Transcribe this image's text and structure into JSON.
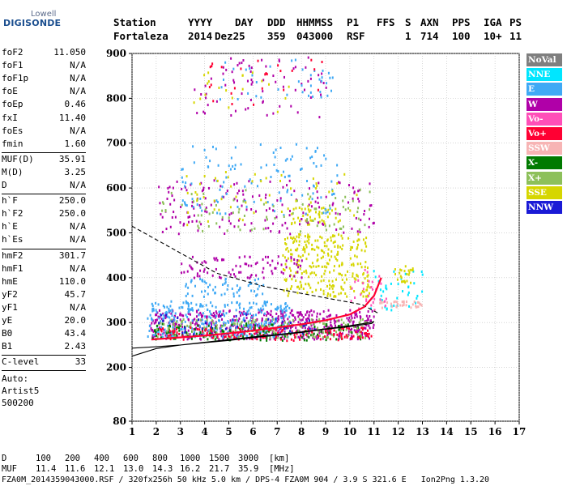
{
  "logo": {
    "top": "Lowell",
    "main": "DIGISONDE"
  },
  "header": {
    "columns": [
      "Station",
      "YYYY",
      "DAY",
      "DDD",
      "HHMMSS",
      "P1",
      "FFS",
      "S",
      "AXN",
      "PPS",
      "IGA",
      "PS"
    ],
    "values": [
      "Fortaleza",
      "2014",
      "Dez25",
      "359",
      "043000",
      "RSF",
      "1",
      "714",
      "100",
      "10+",
      "11"
    ]
  },
  "params_group1": [
    {
      "k": "foF2",
      "v": "11.050"
    },
    {
      "k": "foF1",
      "v": "N/A"
    },
    {
      "k": "foF1p",
      "v": "N/A"
    },
    {
      "k": "foE",
      "v": "N/A"
    },
    {
      "k": "foEp",
      "v": "0.46"
    },
    {
      "k": "fxI",
      "v": "11.40"
    },
    {
      "k": "foEs",
      "v": "N/A"
    },
    {
      "k": "fmin",
      "v": "1.60"
    }
  ],
  "params_group2": [
    {
      "k": "MUF(D)",
      "v": "35.91"
    },
    {
      "k": "M(D)",
      "v": "3.25"
    },
    {
      "k": "D",
      "v": "N/A"
    }
  ],
  "params_group3": [
    {
      "k": "h`F",
      "v": "250.0"
    },
    {
      "k": "h`F2",
      "v": "250.0"
    },
    {
      "k": "h`E",
      "v": "N/A"
    },
    {
      "k": "h`Es",
      "v": "N/A"
    }
  ],
  "params_group4": [
    {
      "k": "hmF2",
      "v": "301.7"
    },
    {
      "k": "hmF1",
      "v": "N/A"
    },
    {
      "k": "hmE",
      "v": "110.0"
    },
    {
      "k": "yF2",
      "v": "45.7"
    },
    {
      "k": "yF1",
      "v": "N/A"
    },
    {
      "k": "yE",
      "v": "20.0"
    },
    {
      "k": "B0",
      "v": "43.4"
    },
    {
      "k": "B1",
      "v": "2.43"
    }
  ],
  "clevel": {
    "k": "C-level",
    "v": "33"
  },
  "auto": {
    "line1": "Auto:",
    "line2": "Artist5",
    "line3": "500200"
  },
  "legend": [
    {
      "label": "NoVal",
      "bg": "#7f7f7f",
      "fg": "#ffffff"
    },
    {
      "label": "NNE",
      "bg": "#00e6ff",
      "fg": "#ffffff"
    },
    {
      "label": "E",
      "bg": "#3fa9f5",
      "fg": "#ffffff"
    },
    {
      "label": "W",
      "bg": "#b000a8",
      "fg": "#ffffff"
    },
    {
      "label": "Vo-",
      "bg": "#ff4fb8",
      "fg": "#ffffff"
    },
    {
      "label": "Vo+",
      "bg": "#ff0033",
      "fg": "#ffffff"
    },
    {
      "label": "SSW",
      "bg": "#f7b4b4",
      "fg": "#ffffff"
    },
    {
      "label": "X-",
      "bg": "#007a00",
      "fg": "#ffffff"
    },
    {
      "label": "X+",
      "bg": "#8dc05a",
      "fg": "#ffffff"
    },
    {
      "label": "SSE",
      "bg": "#d6d600",
      "fg": "#ffffff"
    },
    {
      "label": "NNW",
      "bg": "#1a1ad6",
      "fg": "#ffffff"
    }
  ],
  "chart_data": {
    "type": "scatter",
    "xlim": [
      1,
      17
    ],
    "ylim": [
      80,
      900
    ],
    "x_ticks": [
      1,
      2,
      3,
      4,
      5,
      6,
      7,
      8,
      9,
      10,
      11,
      12,
      13,
      14,
      15,
      16,
      17
    ],
    "y_ticks": [
      80,
      200,
      300,
      400,
      500,
      600,
      700,
      800,
      900
    ],
    "grid": true,
    "curves": [
      {
        "name": "profile",
        "style": "solid",
        "points": [
          [
            1.0,
            225
          ],
          [
            2,
            242
          ],
          [
            3,
            250
          ],
          [
            4,
            256
          ],
          [
            5,
            262
          ],
          [
            6,
            268
          ],
          [
            7,
            273
          ],
          [
            8,
            279
          ],
          [
            9,
            286
          ],
          [
            10,
            293
          ],
          [
            10.6,
            298
          ],
          [
            11.0,
            302
          ],
          [
            10.9,
            298
          ],
          [
            10.0,
            291
          ],
          [
            9.0,
            285
          ],
          [
            8.0,
            278
          ],
          [
            7.0,
            272
          ],
          [
            6.0,
            266
          ],
          [
            5.0,
            260
          ],
          [
            4.0,
            255
          ],
          [
            3.0,
            250
          ],
          [
            2.0,
            246
          ],
          [
            1.0,
            243
          ]
        ]
      },
      {
        "name": "extrapolation",
        "style": "dashed",
        "points": [
          [
            1.0,
            515
          ],
          [
            1.5,
            500
          ],
          [
            2.5,
            470
          ],
          [
            3.5,
            440
          ],
          [
            4.5,
            410
          ],
          [
            5.5,
            395
          ],
          [
            6.5,
            380
          ],
          [
            7.5,
            370
          ],
          [
            8.5,
            360
          ],
          [
            9.5,
            350
          ],
          [
            10.5,
            340
          ],
          [
            11.2,
            320
          ]
        ]
      },
      {
        "name": "trace",
        "style": "solid-red",
        "points": [
          [
            1.8,
            262
          ],
          [
            3,
            267
          ],
          [
            4,
            271
          ],
          [
            5,
            276
          ],
          [
            6,
            282
          ],
          [
            7,
            289
          ],
          [
            8,
            296
          ],
          [
            9,
            305
          ],
          [
            10,
            318
          ],
          [
            10.6,
            335
          ],
          [
            11.0,
            360
          ],
          [
            11.3,
            400
          ]
        ]
      }
    ],
    "clusters": [
      {
        "color": "#b000a8",
        "xr": [
          1.7,
          11.0
        ],
        "yr": [
          265,
          330
        ],
        "n": 520
      },
      {
        "color": "#3fa9f5",
        "xr": [
          1.6,
          7.5
        ],
        "yr": [
          270,
          350
        ],
        "n": 340
      },
      {
        "color": "#007a00",
        "xr": [
          1.8,
          10.5
        ],
        "yr": [
          262,
          300
        ],
        "n": 150
      },
      {
        "color": "#8dc05a",
        "xr": [
          2.0,
          10.8
        ],
        "yr": [
          268,
          310
        ],
        "n": 170
      },
      {
        "color": "#ff0033",
        "xr": [
          1.9,
          10.9
        ],
        "yr": [
          262,
          292
        ],
        "n": 140
      },
      {
        "color": "#d6d600",
        "xr": [
          7.2,
          10.8
        ],
        "yr": [
          360,
          500
        ],
        "n": 280
      },
      {
        "color": "#d6d600",
        "xr": [
          7.5,
          9.5
        ],
        "yr": [
          520,
          560
        ],
        "n": 40
      },
      {
        "color": "#b000a8",
        "xr": [
          3.0,
          8.0
        ],
        "yr": [
          400,
          450
        ],
        "n": 90
      },
      {
        "color": "#3fa9f5",
        "xr": [
          3.0,
          6.5
        ],
        "yr": [
          360,
          400
        ],
        "n": 60
      },
      {
        "color": "#b000a8",
        "xr": [
          2.0,
          11.0
        ],
        "yr": [
          500,
          620
        ],
        "n": 170
      },
      {
        "color": "#3fa9f5",
        "xr": [
          3.0,
          9.5
        ],
        "yr": [
          540,
          700
        ],
        "n": 120
      },
      {
        "color": "#8dc05a",
        "xr": [
          2.2,
          10.8
        ],
        "yr": [
          505,
          600
        ],
        "n": 80
      },
      {
        "color": "#d6d600",
        "xr": [
          3.0,
          10.5
        ],
        "yr": [
          520,
          640
        ],
        "n": 60
      },
      {
        "color": "#b000a8",
        "xr": [
          3.5,
          9.0
        ],
        "yr": [
          760,
          895
        ],
        "n": 70
      },
      {
        "color": "#3fa9f5",
        "xr": [
          4.5,
          9.5
        ],
        "yr": [
          800,
          895
        ],
        "n": 40
      },
      {
        "color": "#ff0033",
        "xr": [
          4.0,
          9.0
        ],
        "yr": [
          780,
          895
        ],
        "n": 25
      },
      {
        "color": "#d6d600",
        "xr": [
          3.5,
          8.0
        ],
        "yr": [
          770,
          860
        ],
        "n": 20
      },
      {
        "color": "#00e6ff",
        "xr": [
          10.8,
          13.0
        ],
        "yr": [
          330,
          420
        ],
        "n": 40
      },
      {
        "color": "#f7b4b4",
        "xr": [
          11.2,
          13.0
        ],
        "yr": [
          335,
          350
        ],
        "n": 35
      },
      {
        "color": "#d6d600",
        "xr": [
          11.8,
          12.6
        ],
        "yr": [
          390,
          430
        ],
        "n": 25
      },
      {
        "color": "#ff4fb8",
        "xr": [
          10.0,
          11.5
        ],
        "yr": [
          330,
          420
        ],
        "n": 30
      },
      {
        "color": "#1a1ad6",
        "xr": [
          2.0,
          9.0
        ],
        "yr": [
          275,
          320
        ],
        "n": 40
      }
    ]
  },
  "footer": {
    "d_label": "D",
    "d_values": [
      "100",
      "200",
      "400",
      "600",
      "800",
      "1000",
      "1500",
      "3000",
      "[km]"
    ],
    "muf_label": "MUF",
    "muf_values": [
      "11.4",
      "11.6",
      "12.1",
      "13.0",
      "14.3",
      "16.2",
      "21.7",
      "35.9",
      "[MHz]"
    ],
    "info": "FZA0M_2014359043000.RSF / 320fx256h 50 kHz 5.0 km / DPS-4 FZA0M 904 / 3.9 S 321.6 E   Ion2Png 1.3.20"
  }
}
